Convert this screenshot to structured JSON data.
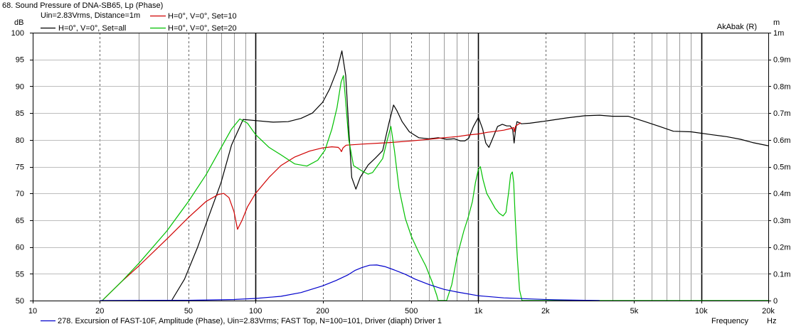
{
  "chart_data": {
    "type": "line",
    "title": "68. Sound Pressure of DNA-SB65, Lp (Phase)",
    "subtitle": "Uin=2.83Vrms, Distance=1m",
    "watermark": "AkAbak (R)",
    "x_scale": "log",
    "xlim": [
      10,
      20000
    ],
    "x_ticks": [
      {
        "v": 10,
        "label": "10"
      },
      {
        "v": 20,
        "label": "20"
      },
      {
        "v": 50,
        "label": "50"
      },
      {
        "v": 100,
        "label": "100"
      },
      {
        "v": 200,
        "label": "200"
      },
      {
        "v": 500,
        "label": "500"
      },
      {
        "v": 1000,
        "label": "1k"
      },
      {
        "v": 2000,
        "label": "2k"
      },
      {
        "v": 5000,
        "label": "5k"
      },
      {
        "v": 10000,
        "label": "10k"
      },
      {
        "v": 20000,
        "label": "20k"
      }
    ],
    "xlabel": "Frequency",
    "xunit": "Hz",
    "ylabel": "dB",
    "ylim": [
      50,
      100
    ],
    "y_ticks": [
      50,
      55,
      60,
      65,
      70,
      75,
      80,
      85,
      90,
      95,
      100
    ],
    "y2label": "m",
    "y2lim": [
      0,
      1
    ],
    "y2_ticks": [
      "0",
      "0.1m",
      "0.2m",
      "0.3m",
      "0.4m",
      "0.5m",
      "0.6m",
      "0.7m",
      "0.8m",
      "0.9m",
      "1m"
    ],
    "grid": true,
    "legend_position": "top-left",
    "series": [
      {
        "name": "H=0°, V=0°, Set=all",
        "color": "#000000",
        "axis": "left",
        "points": [
          [
            42,
            50
          ],
          [
            48,
            54
          ],
          [
            55,
            60
          ],
          [
            62,
            66
          ],
          [
            70,
            72
          ],
          [
            78,
            79
          ],
          [
            88,
            83.8
          ],
          [
            100,
            83.6
          ],
          [
            120,
            83.3
          ],
          [
            140,
            83.4
          ],
          [
            160,
            84
          ],
          [
            180,
            85
          ],
          [
            200,
            87
          ],
          [
            215,
            89.5
          ],
          [
            232,
            93
          ],
          [
            244,
            96.6
          ],
          [
            254,
            92
          ],
          [
            262,
            82
          ],
          [
            270,
            73
          ],
          [
            282,
            70.8
          ],
          [
            295,
            73
          ],
          [
            320,
            75.3
          ],
          [
            345,
            76.6
          ],
          [
            372,
            78
          ],
          [
            396,
            83
          ],
          [
            416,
            86.5
          ],
          [
            430,
            85.5
          ],
          [
            455,
            83.4
          ],
          [
            490,
            81.5
          ],
          [
            540,
            80.4
          ],
          [
            600,
            80.2
          ],
          [
            660,
            80.4
          ],
          [
            720,
            80.1
          ],
          [
            780,
            80.2
          ],
          [
            830,
            79.8
          ],
          [
            870,
            79.8
          ],
          [
            905,
            80.3
          ],
          [
            950,
            82.5
          ],
          [
            1000,
            84.2
          ],
          [
            1045,
            82
          ],
          [
            1080,
            79.4
          ],
          [
            1115,
            78.6
          ],
          [
            1160,
            80.3
          ],
          [
            1220,
            82.5
          ],
          [
            1280,
            82.9
          ],
          [
            1340,
            82.6
          ],
          [
            1390,
            82.6
          ],
          [
            1425,
            81.9
          ],
          [
            1447,
            79.4
          ],
          [
            1465,
            81.5
          ],
          [
            1490,
            83.4
          ],
          [
            1560,
            83
          ],
          [
            1700,
            83.1
          ],
          [
            2000,
            83.5
          ],
          [
            2500,
            84.1
          ],
          [
            3000,
            84.5
          ],
          [
            3500,
            84.6
          ],
          [
            4000,
            84.4
          ],
          [
            4700,
            84.4
          ],
          [
            5500,
            83.5
          ],
          [
            6500,
            82.5
          ],
          [
            7500,
            81.6
          ],
          [
            9000,
            81.5
          ],
          [
            11000,
            81
          ],
          [
            13000,
            80.6
          ],
          [
            15000,
            80.1
          ],
          [
            17000,
            79.5
          ],
          [
            20000,
            78.9
          ]
        ]
      },
      {
        "name": "H=0°, V=0°, Set=10",
        "color": "#d00000",
        "axis": "left",
        "points": [
          [
            20.5,
            50
          ],
          [
            25,
            53.5
          ],
          [
            30,
            56.5
          ],
          [
            40,
            61.5
          ],
          [
            50,
            65.5
          ],
          [
            60,
            68.5
          ],
          [
            68,
            69.8
          ],
          [
            72,
            70
          ],
          [
            76,
            69.2
          ],
          [
            80,
            66.6
          ],
          [
            83,
            63.3
          ],
          [
            87,
            65
          ],
          [
            92,
            67.5
          ],
          [
            100,
            70
          ],
          [
            115,
            73
          ],
          [
            130,
            75.2
          ],
          [
            150,
            76.8
          ],
          [
            175,
            77.9
          ],
          [
            200,
            78.5
          ],
          [
            220,
            78.7
          ],
          [
            235,
            78.6
          ],
          [
            240,
            78.2
          ],
          [
            243,
            77.8
          ],
          [
            247,
            78.5
          ],
          [
            255,
            79
          ],
          [
            300,
            79.2
          ],
          [
            400,
            79.5
          ],
          [
            500,
            79.8
          ],
          [
            600,
            80.1
          ],
          [
            700,
            80.4
          ],
          [
            800,
            80.6
          ],
          [
            900,
            80.9
          ],
          [
            1000,
            81.1
          ],
          [
            1100,
            81.4
          ],
          [
            1200,
            81.6
          ],
          [
            1300,
            81.8
          ],
          [
            1390,
            82.1
          ],
          [
            1440,
            82.3
          ],
          [
            1448,
            81.5
          ],
          [
            1470,
            82.6
          ],
          [
            1550,
            83.2
          ]
        ]
      },
      {
        "name": "H=0°, V=0°, Set=20",
        "color": "#00c000",
        "axis": "left",
        "points": [
          [
            20.5,
            50
          ],
          [
            25,
            53.5
          ],
          [
            30,
            57
          ],
          [
            40,
            63
          ],
          [
            50,
            68.5
          ],
          [
            60,
            73.5
          ],
          [
            70,
            78.5
          ],
          [
            78,
            82
          ],
          [
            85,
            83.9
          ],
          [
            92,
            83.1
          ],
          [
            100,
            81
          ],
          [
            115,
            78.6
          ],
          [
            130,
            77.2
          ],
          [
            150,
            75.5
          ],
          [
            170,
            75.1
          ],
          [
            190,
            76.2
          ],
          [
            205,
            78.1
          ],
          [
            220,
            82
          ],
          [
            232,
            86
          ],
          [
            242,
            90.8
          ],
          [
            248,
            92
          ],
          [
            254,
            87
          ],
          [
            262,
            80
          ],
          [
            275,
            75.2
          ],
          [
            300,
            74.2
          ],
          [
            320,
            73.6
          ],
          [
            335,
            73.9
          ],
          [
            350,
            75
          ],
          [
            372,
            76.5
          ],
          [
            390,
            80
          ],
          [
            405,
            82.5
          ],
          [
            420,
            78
          ],
          [
            440,
            71
          ],
          [
            470,
            65.3
          ],
          [
            500,
            62
          ],
          [
            540,
            59
          ],
          [
            580,
            56.5
          ],
          [
            620,
            53.5
          ],
          [
            650,
            51
          ],
          [
            660,
            50
          ],
          [
            720,
            50
          ],
          [
            760,
            53
          ],
          [
            800,
            58
          ],
          [
            860,
            63
          ],
          [
            900,
            65.5
          ],
          [
            940,
            68.5
          ],
          [
            970,
            72
          ],
          [
            1000,
            74.5
          ],
          [
            1020,
            75
          ],
          [
            1050,
            72.5
          ],
          [
            1090,
            70
          ],
          [
            1140,
            68.6
          ],
          [
            1190,
            67.2
          ],
          [
            1240,
            66.3
          ],
          [
            1290,
            65.8
          ],
          [
            1330,
            66.5
          ],
          [
            1370,
            70.5
          ],
          [
            1395,
            73.5
          ],
          [
            1420,
            74
          ],
          [
            1440,
            72
          ],
          [
            1465,
            65
          ],
          [
            1495,
            58
          ],
          [
            1530,
            52
          ],
          [
            1570,
            50
          ],
          [
            20000,
            50
          ]
        ]
      },
      {
        "name": "278. Excursion of FAST-10F, Amplitude (Phase), Uin=2.83Vrms; FAST Top, N=100=101, Driver (diaph) Driver 1",
        "color": "#0000cc",
        "axis": "right",
        "points": [
          [
            20,
            0
          ],
          [
            50,
            0.001
          ],
          [
            80,
            0.004
          ],
          [
            100,
            0.008
          ],
          [
            130,
            0.016
          ],
          [
            160,
            0.03
          ],
          [
            200,
            0.055
          ],
          [
            230,
            0.075
          ],
          [
            260,
            0.096
          ],
          [
            280,
            0.113
          ],
          [
            300,
            0.123
          ],
          [
            325,
            0.132
          ],
          [
            350,
            0.133
          ],
          [
            380,
            0.127
          ],
          [
            420,
            0.114
          ],
          [
            470,
            0.098
          ],
          [
            520,
            0.08
          ],
          [
            600,
            0.06
          ],
          [
            700,
            0.042
          ],
          [
            800,
            0.032
          ],
          [
            1000,
            0.018
          ],
          [
            1300,
            0.01
          ],
          [
            1700,
            0.006
          ],
          [
            2200,
            0.003
          ],
          [
            3000,
            0.001
          ],
          [
            3500,
            0
          ]
        ]
      }
    ]
  }
}
